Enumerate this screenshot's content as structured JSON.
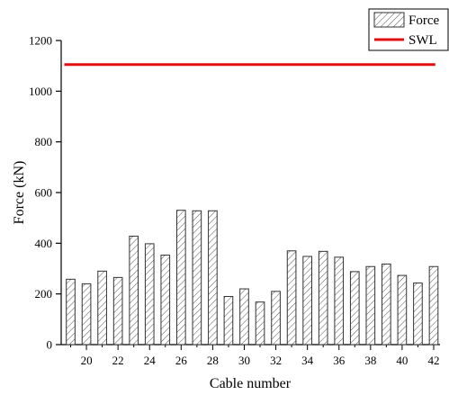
{
  "chart_data": {
    "type": "bar",
    "title": "",
    "xlabel": "Cable number",
    "ylabel": "Force (kN)",
    "ylim": [
      0,
      1200
    ],
    "yticks": [
      0,
      200,
      400,
      600,
      800,
      1000,
      1200
    ],
    "xticks": [
      20,
      22,
      24,
      26,
      28,
      30,
      32,
      34,
      36,
      38,
      40,
      42
    ],
    "categories": [
      19,
      20,
      21,
      22,
      23,
      24,
      25,
      26,
      27,
      28,
      29,
      30,
      31,
      32,
      33,
      34,
      35,
      36,
      37,
      38,
      39,
      40,
      41,
      42
    ],
    "series": [
      {
        "name": "Force",
        "values": [
          258,
          240,
          290,
          265,
          428,
          398,
          353,
          530,
          528,
          528,
          190,
          220,
          168,
          210,
          370,
          348,
          368,
          345,
          288,
          308,
          318,
          273,
          243,
          308
        ]
      }
    ],
    "reference_line": {
      "name": "SWL",
      "value": 1105,
      "color": "#e01010"
    },
    "legend": {
      "placement": "top-right",
      "entries": [
        "Force",
        "SWL"
      ]
    },
    "grid": false
  }
}
